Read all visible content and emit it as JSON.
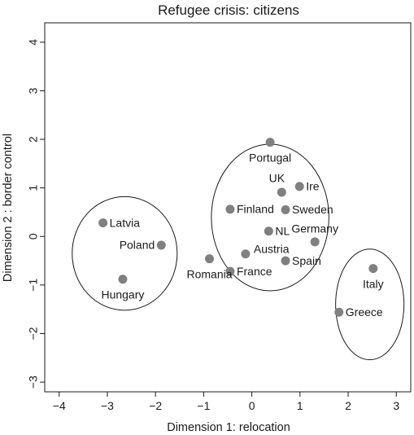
{
  "chart_data": {
    "type": "scatter",
    "title": "Refugee crisis: citizens",
    "xlabel": "Dimension 1: relocation",
    "ylabel": "Dimension 2 : border control",
    "xlim": [
      -4.3,
      3.3
    ],
    "ylim": [
      -3.2,
      4.4
    ],
    "xticks": [
      -4,
      -3,
      -2,
      -1,
      0,
      1,
      2,
      3
    ],
    "yticks": [
      -3,
      -2,
      -1,
      0,
      1,
      2,
      3,
      4
    ],
    "xtick_labels": [
      "−4",
      "−3",
      "−2",
      "−1",
      "0",
      "1",
      "2",
      "3"
    ],
    "ytick_labels": [
      "−3",
      "−2",
      "−1",
      "0",
      "1",
      "2",
      "3",
      "4"
    ],
    "grid": false,
    "point_color": "#808080",
    "points": [
      {
        "label": "Portugal",
        "x": 0.38,
        "y": 1.94,
        "anchor": "below"
      },
      {
        "label": "UK",
        "x": 0.62,
        "y": 0.91,
        "anchor": "upper-left"
      },
      {
        "label": "Ire",
        "x": 0.99,
        "y": 1.03,
        "anchor": "right"
      },
      {
        "label": "Finland",
        "x": -0.45,
        "y": 0.56,
        "anchor": "right"
      },
      {
        "label": "Sweden",
        "x": 0.7,
        "y": 0.55,
        "anchor": "right"
      },
      {
        "label": "NL",
        "x": 0.35,
        "y": 0.11,
        "anchor": "right"
      },
      {
        "label": "Germany",
        "x": 1.31,
        "y": -0.11,
        "anchor": "above"
      },
      {
        "label": "Austria",
        "x": -0.13,
        "y": -0.36,
        "anchor": "upper-right"
      },
      {
        "label": "Spain",
        "x": 0.7,
        "y": -0.5,
        "anchor": "right"
      },
      {
        "label": "France",
        "x": -0.45,
        "y": -0.72,
        "anchor": "right"
      },
      {
        "label": "Romania",
        "x": -0.88,
        "y": -0.46,
        "anchor": "below"
      },
      {
        "label": "Latvia",
        "x": -3.09,
        "y": 0.28,
        "anchor": "right"
      },
      {
        "label": "Poland",
        "x": -1.88,
        "y": -0.18,
        "anchor": "left"
      },
      {
        "label": "Hungary",
        "x": -2.68,
        "y": -0.88,
        "anchor": "below"
      },
      {
        "label": "Italy",
        "x": 2.52,
        "y": -0.66,
        "anchor": "below"
      },
      {
        "label": "Greece",
        "x": 1.81,
        "y": -1.56,
        "anchor": "right"
      }
    ],
    "ellipses": [
      {
        "cx": -2.64,
        "cy": -0.35,
        "rx": 1.09,
        "ry": 1.17
      },
      {
        "cx": 0.38,
        "cy": 0.39,
        "rx": 1.22,
        "ry": 1.51
      },
      {
        "cx": 2.45,
        "cy": -1.4,
        "rx": 0.71,
        "ry": 1.14
      }
    ]
  }
}
